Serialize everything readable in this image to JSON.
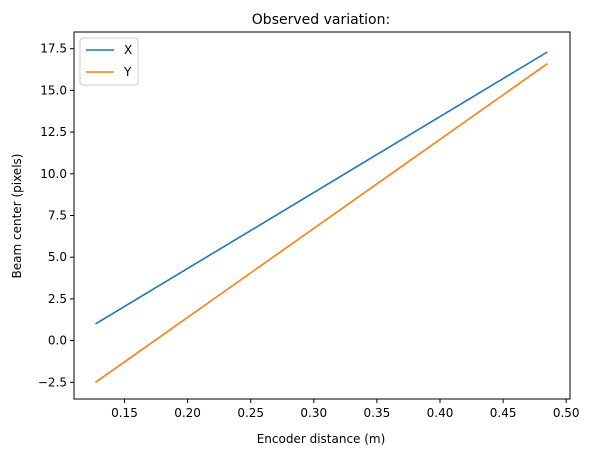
{
  "chart_data": {
    "type": "line",
    "title": "Observed variation:",
    "xlabel": "Encoder distance (m)",
    "ylabel": "Beam center (pixels)",
    "xlim": [
      0.11,
      0.503
    ],
    "ylim": [
      -3.5,
      18.5
    ],
    "xticks": [
      "0.15",
      "0.20",
      "0.25",
      "0.30",
      "0.35",
      "0.40",
      "0.45",
      "0.50"
    ],
    "xtick_values": [
      0.15,
      0.2,
      0.25,
      0.3,
      0.35,
      0.4,
      0.45,
      0.5
    ],
    "yticks": [
      "−2.5",
      "0.0",
      "2.5",
      "5.0",
      "7.5",
      "10.0",
      "12.5",
      "15.0",
      "17.5"
    ],
    "ytick_values": [
      -2.5,
      0.0,
      2.5,
      5.0,
      7.5,
      10.0,
      12.5,
      15.0,
      17.5
    ],
    "grid": false,
    "legend_position": "top-left",
    "series": [
      {
        "name": "X",
        "color": "#1f77b4",
        "x": [
          0.127,
          0.485
        ],
        "y": [
          1.0,
          17.3
        ]
      },
      {
        "name": "Y",
        "color": "#ff7f0e",
        "x": [
          0.127,
          0.485
        ],
        "y": [
          -2.5,
          16.6
        ]
      }
    ]
  }
}
